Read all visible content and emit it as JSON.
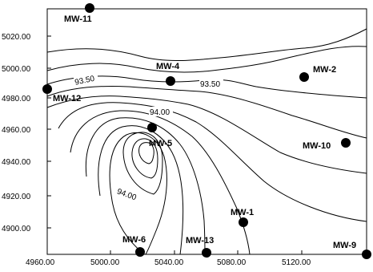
{
  "map": {
    "x_ticks": [
      "4960.00",
      "5000.00",
      "5040.00",
      "5080.00",
      "5120.00"
    ],
    "y_ticks": [
      "5020.00",
      "5000.00",
      "4980.00",
      "4960.00",
      "4940.00",
      "4920.00",
      "4900.00"
    ],
    "contour_labels": [
      "93.50",
      "93.50",
      "94.00",
      "94.00"
    ],
    "wells": [
      {
        "name": "MW-11"
      },
      {
        "name": "MW-12"
      },
      {
        "name": "MW-4"
      },
      {
        "name": "MW-2"
      },
      {
        "name": "MW-5"
      },
      {
        "name": "MW-10"
      },
      {
        "name": "MW-1"
      },
      {
        "name": "MW-6"
      },
      {
        "name": "MW-13"
      },
      {
        "name": "MW-9"
      }
    ]
  }
}
